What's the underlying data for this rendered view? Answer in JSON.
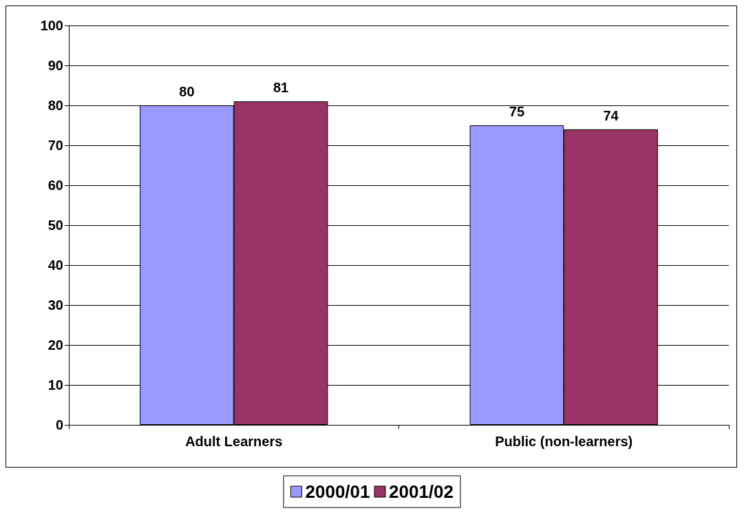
{
  "chart_data": {
    "type": "bar",
    "categories": [
      "Adult Learners",
      "Public (non-learners)"
    ],
    "series": [
      {
        "name": "2000/01",
        "color": "#9999ff",
        "values": [
          80,
          75
        ]
      },
      {
        "name": "2001/02",
        "color": "#993366",
        "values": [
          81,
          74
        ]
      }
    ],
    "ylim": [
      0,
      100
    ],
    "yticks": [
      0,
      10,
      20,
      30,
      40,
      50,
      60,
      70,
      80,
      90,
      100
    ],
    "grid": "y",
    "legend": "bottom",
    "data_labels": true
  }
}
